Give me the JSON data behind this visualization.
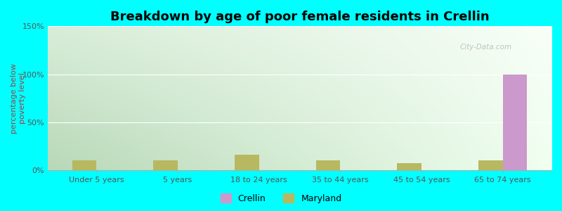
{
  "title": "Breakdown by age of poor female residents in Crellin",
  "ylabel": "percentage below\npoverty level",
  "categories": [
    "Under 5 years",
    "5 years",
    "18 to 24 years",
    "35 to 44 years",
    "45 to 54 years",
    "65 to 74 years"
  ],
  "crellin_values": [
    0,
    0,
    0,
    0,
    0,
    100
  ],
  "maryland_values": [
    10,
    10,
    16,
    10,
    7,
    10
  ],
  "crellin_color": "#cc99cc",
  "maryland_color": "#b8b860",
  "ylim": [
    0,
    150
  ],
  "yticks": [
    0,
    50,
    100,
    150
  ],
  "ytick_labels": [
    "0%",
    "50%",
    "100%",
    "150%"
  ],
  "bar_width": 0.3,
  "background_color": "#00ffff",
  "plot_bg_top_left": "#c8e8c8",
  "plot_bg_bottom_right": "#f8fff8",
  "legend_labels": [
    "Crellin",
    "Maryland"
  ],
  "watermark": "City-Data.com",
  "title_fontsize": 13,
  "axis_label_fontsize": 8,
  "tick_fontsize": 8,
  "ylabel_color": "#994444"
}
